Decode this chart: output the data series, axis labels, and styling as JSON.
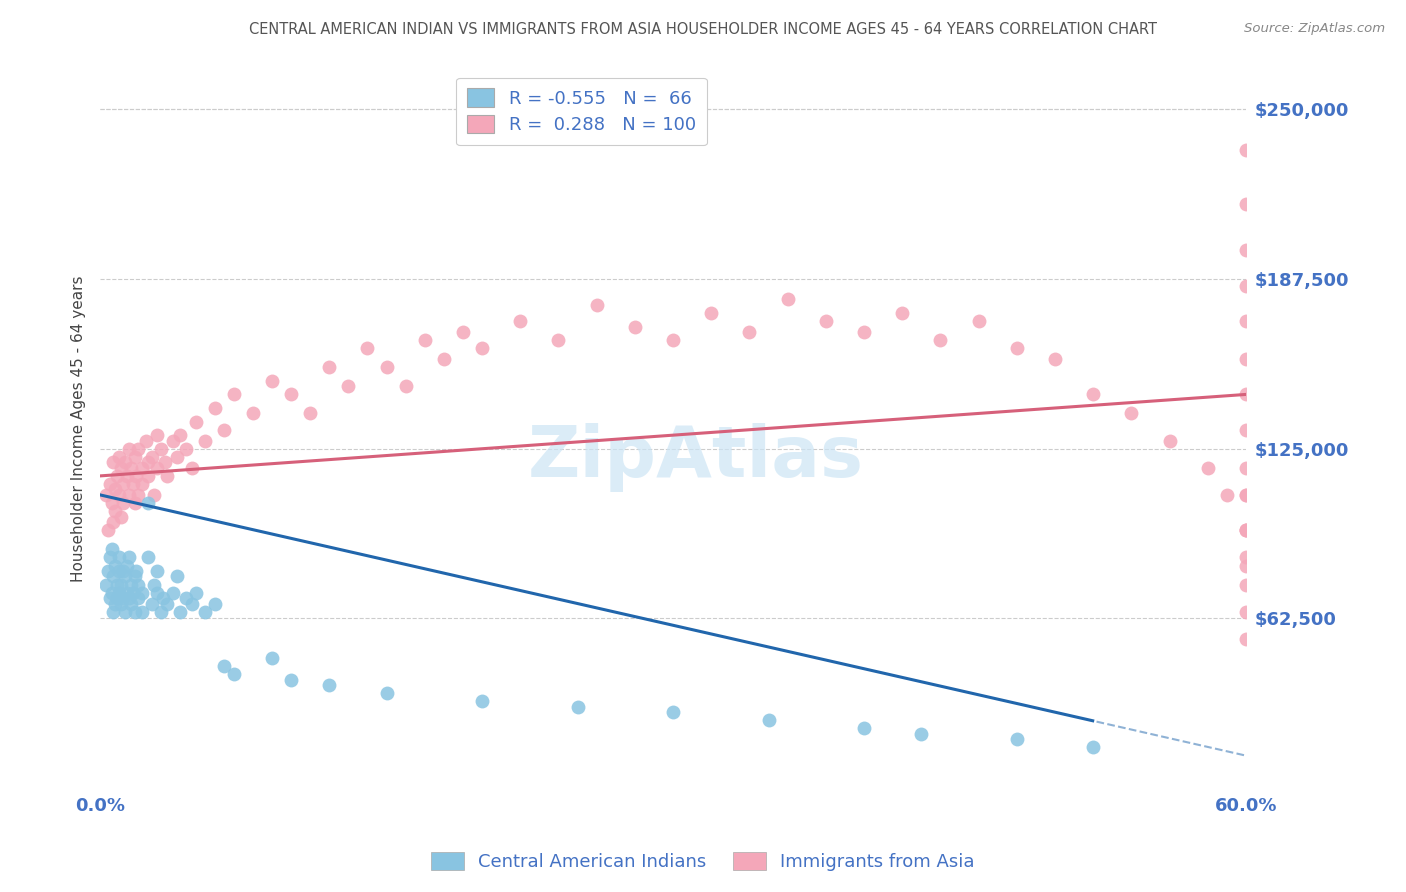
{
  "title": "CENTRAL AMERICAN INDIAN VS IMMIGRANTS FROM ASIA HOUSEHOLDER INCOME AGES 45 - 64 YEARS CORRELATION CHART",
  "source": "Source: ZipAtlas.com",
  "ylabel": "Householder Income Ages 45 - 64 years",
  "xlim": [
    0.0,
    0.6
  ],
  "ylim": [
    0,
    265000
  ],
  "yticks": [
    62500,
    125000,
    187500,
    250000
  ],
  "ytick_labels": [
    "$62,500",
    "$125,000",
    "$187,500",
    "$250,000"
  ],
  "xtick_positions": [
    0.0,
    0.6
  ],
  "xtick_labels": [
    "0.0%",
    "60.0%"
  ],
  "legend_blue": "R = -0.555   N =  66",
  "legend_pink": "R =  0.288   N = 100",
  "blue_scatter_color": "#89c4e1",
  "pink_scatter_color": "#f4a7b9",
  "blue_line_color": "#2166ac",
  "pink_line_color": "#d6607a",
  "tick_label_color": "#4472c4",
  "ylabel_color": "#444444",
  "title_color": "#555555",
  "source_color": "#888888",
  "background_color": "#ffffff",
  "watermark_color": "#cce5f5",
  "grid_color": "#cccccc",
  "blue_scatter_x": [
    0.003,
    0.004,
    0.005,
    0.005,
    0.006,
    0.006,
    0.007,
    0.007,
    0.008,
    0.008,
    0.009,
    0.009,
    0.01,
    0.01,
    0.01,
    0.011,
    0.011,
    0.012,
    0.012,
    0.013,
    0.013,
    0.014,
    0.014,
    0.015,
    0.015,
    0.016,
    0.016,
    0.017,
    0.018,
    0.018,
    0.019,
    0.02,
    0.02,
    0.022,
    0.022,
    0.025,
    0.025,
    0.027,
    0.028,
    0.03,
    0.03,
    0.032,
    0.033,
    0.035,
    0.038,
    0.04,
    0.042,
    0.045,
    0.048,
    0.05,
    0.055,
    0.06,
    0.065,
    0.07,
    0.09,
    0.1,
    0.12,
    0.15,
    0.2,
    0.25,
    0.3,
    0.35,
    0.4,
    0.43,
    0.48,
    0.52
  ],
  "blue_scatter_y": [
    75000,
    80000,
    70000,
    85000,
    72000,
    88000,
    65000,
    78000,
    68000,
    82000,
    70000,
    75000,
    80000,
    72000,
    85000,
    68000,
    75000,
    70000,
    80000,
    65000,
    78000,
    72000,
    82000,
    70000,
    85000,
    68000,
    75000,
    72000,
    65000,
    78000,
    80000,
    70000,
    75000,
    65000,
    72000,
    85000,
    105000,
    68000,
    75000,
    72000,
    80000,
    65000,
    70000,
    68000,
    72000,
    78000,
    65000,
    70000,
    68000,
    72000,
    65000,
    68000,
    45000,
    42000,
    48000,
    40000,
    38000,
    35000,
    32000,
    30000,
    28000,
    25000,
    22000,
    20000,
    18000,
    15000
  ],
  "pink_scatter_x": [
    0.003,
    0.004,
    0.005,
    0.006,
    0.007,
    0.007,
    0.008,
    0.008,
    0.009,
    0.01,
    0.01,
    0.011,
    0.011,
    0.012,
    0.012,
    0.013,
    0.014,
    0.015,
    0.015,
    0.016,
    0.017,
    0.018,
    0.018,
    0.019,
    0.02,
    0.02,
    0.022,
    0.022,
    0.024,
    0.025,
    0.025,
    0.027,
    0.028,
    0.03,
    0.03,
    0.032,
    0.034,
    0.035,
    0.038,
    0.04,
    0.042,
    0.045,
    0.048,
    0.05,
    0.055,
    0.06,
    0.065,
    0.07,
    0.08,
    0.09,
    0.1,
    0.11,
    0.12,
    0.13,
    0.14,
    0.15,
    0.16,
    0.17,
    0.18,
    0.19,
    0.2,
    0.22,
    0.24,
    0.26,
    0.28,
    0.3,
    0.32,
    0.34,
    0.36,
    0.38,
    0.4,
    0.42,
    0.44,
    0.46,
    0.48,
    0.5,
    0.52,
    0.54,
    0.56,
    0.58,
    0.59,
    0.6,
    0.6,
    0.6,
    0.6,
    0.6,
    0.6,
    0.6,
    0.6,
    0.6,
    0.6,
    0.6,
    0.6,
    0.6,
    0.6,
    0.6,
    0.6,
    0.6,
    0.6,
    0.6
  ],
  "pink_scatter_y": [
    108000,
    95000,
    112000,
    105000,
    98000,
    120000,
    110000,
    102000,
    115000,
    108000,
    122000,
    100000,
    118000,
    112000,
    105000,
    120000,
    115000,
    108000,
    125000,
    118000,
    112000,
    105000,
    122000,
    115000,
    108000,
    125000,
    118000,
    112000,
    128000,
    120000,
    115000,
    122000,
    108000,
    130000,
    118000,
    125000,
    120000,
    115000,
    128000,
    122000,
    130000,
    125000,
    118000,
    135000,
    128000,
    140000,
    132000,
    145000,
    138000,
    150000,
    145000,
    138000,
    155000,
    148000,
    162000,
    155000,
    148000,
    165000,
    158000,
    168000,
    162000,
    172000,
    165000,
    178000,
    170000,
    165000,
    175000,
    168000,
    180000,
    172000,
    168000,
    175000,
    165000,
    172000,
    162000,
    158000,
    145000,
    138000,
    128000,
    118000,
    108000,
    235000,
    215000,
    198000,
    185000,
    172000,
    158000,
    145000,
    132000,
    118000,
    108000,
    95000,
    82000,
    95000,
    108000,
    85000,
    95000,
    75000,
    65000,
    55000
  ]
}
